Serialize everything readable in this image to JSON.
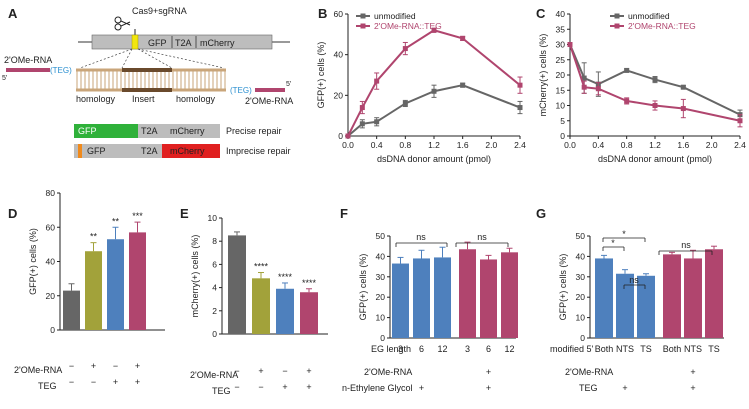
{
  "colors": {
    "gray": "#666666",
    "pink": "#b0456e",
    "olive": "#a2a23a",
    "blue": "#4e80bd",
    "green": "#2fb13a",
    "red": "#e02020",
    "orange": "#f08a1c",
    "yellow": "#f2e60d",
    "tan": "#d4b48a",
    "brown": "#6a4a2c",
    "cyan": "#2a8fd0",
    "axis": "#222222"
  },
  "panels": {
    "A": {
      "letter": "A",
      "scissors_icon": "scissors-icon",
      "cas9_label": "Cas9+sgRNA",
      "gfp_label": "GFP",
      "t2a_label": "T2A",
      "mcherry_label": "mCherry",
      "ome_left": "2'OMe-RNA",
      "teg_left": "(TEG)",
      "five_prime_left": "5'",
      "teg_right": "(TEG)",
      "five_prime_right": "5'",
      "homology_left": "homology",
      "insert": "Insert",
      "homology_right": "homology",
      "ome_right": "2'OMe-RNA",
      "precise_gfp": "GFP",
      "precise_t2a": "T2A",
      "precise_mcherry": "mCherry",
      "precise_label": "Precise repair",
      "imprecise_gfp": "GFP",
      "imprecise_t2a": "T2A",
      "imprecise_mcherry": "mCherry",
      "imprecise_label": "Imprecise repair"
    },
    "B": {
      "letter": "B"
    },
    "C": {
      "letter": "C"
    },
    "D": {
      "letter": "D",
      "row1": "2'OMe-RNA",
      "row2": "TEG"
    },
    "E": {
      "letter": "E",
      "row1": "2'OMe-RNA",
      "row2": "TEG"
    },
    "F": {
      "letter": "F",
      "row0": "EG length",
      "row1": "2'OMe-RNA",
      "row2": "n-Ethylene Glycol",
      "ns1": "ns",
      "ns2": "ns"
    },
    "G": {
      "letter": "G",
      "row0": "modified 5'",
      "row1": "2'OMe-RNA",
      "row2": "TEG",
      "star1": "*",
      "star2": "*",
      "ns_inner": "ns",
      "ns_right": "ns"
    }
  },
  "chart_data": [
    {
      "id": "B",
      "type": "line",
      "xlabel": "dsDNA donor amount (pmol)",
      "ylabel": "GFP(+) cells (%)",
      "xlim": [
        0,
        2.4
      ],
      "ylim": [
        0,
        60
      ],
      "xticks": [
        "0.0",
        "0.4",
        "0.8",
        "1.2",
        "1.6",
        "2.0",
        "2.4"
      ],
      "yticks": [
        "0",
        "20",
        "40",
        "60"
      ],
      "legend": "top-left",
      "series": [
        {
          "name": "unmodified",
          "color": "#666666",
          "x": [
            0,
            0.2,
            0.4,
            0.8,
            1.2,
            1.6,
            2.4
          ],
          "y": [
            0,
            6,
            7,
            16,
            22,
            25,
            14
          ],
          "err": [
            0.5,
            2,
            2,
            1.5,
            3,
            1,
            3
          ]
        },
        {
          "name": "2'OMe-RNA::TEG",
          "color": "#b0456e",
          "x": [
            0,
            0.2,
            0.4,
            0.8,
            1.2,
            1.6,
            2.4
          ],
          "y": [
            0,
            14,
            27,
            43,
            52,
            48,
            25
          ],
          "err": [
            0.5,
            3,
            4,
            3,
            1,
            1,
            4
          ]
        }
      ]
    },
    {
      "id": "C",
      "type": "line",
      "xlabel": "dsDNA donor amount (pmol)",
      "ylabel": "mCherry(+) cells (%)",
      "xlim": [
        0,
        2.4
      ],
      "ylim": [
        0,
        40
      ],
      "xticks": [
        "0.0",
        "0.4",
        "0.8",
        "1.2",
        "1.6",
        "2.0",
        "2.4"
      ],
      "yticks": [
        "0",
        "5",
        "10",
        "15",
        "20",
        "25",
        "30",
        "35",
        "40"
      ],
      "legend": "top-right",
      "series": [
        {
          "name": "unmodified",
          "color": "#666666",
          "x": [
            0,
            0.2,
            0.4,
            0.8,
            1.2,
            1.6,
            2.4
          ],
          "y": [
            30,
            19,
            17,
            21.5,
            18.5,
            16,
            7
          ],
          "err": [
            0.5,
            5,
            4,
            0.5,
            1,
            0.5,
            1.5
          ]
        },
        {
          "name": "2'OMe-RNA::TEG",
          "color": "#b0456e",
          "x": [
            0,
            0.2,
            0.4,
            0.8,
            1.2,
            1.6,
            2.4
          ],
          "y": [
            30,
            16,
            15.5,
            11.5,
            10,
            9,
            5
          ],
          "err": [
            0.5,
            2,
            2,
            1,
            1.5,
            3,
            2
          ]
        }
      ]
    },
    {
      "id": "D",
      "type": "bar",
      "ylabel": "GFP(+) cells (%)",
      "ylim": [
        0,
        80
      ],
      "yticks": [
        "0",
        "20",
        "40",
        "60",
        "80"
      ],
      "values": [
        23,
        46,
        53,
        57
      ],
      "err": [
        4,
        5,
        7,
        6
      ],
      "colors": [
        "#666666",
        "#a2a23a",
        "#4e80bd",
        "#b0456e"
      ],
      "sig": [
        "",
        "**",
        "**",
        "***"
      ],
      "row1": [
        "−",
        "+",
        "−",
        "+"
      ],
      "row2": [
        "−",
        "−",
        "+",
        "+"
      ]
    },
    {
      "id": "E",
      "type": "bar",
      "ylabel": "mCherry(+) cells (%)",
      "ylim": [
        0,
        10
      ],
      "yticks": [
        "0",
        "2",
        "4",
        "6",
        "8",
        "10"
      ],
      "values": [
        8.5,
        4.8,
        3.9,
        3.6
      ],
      "err": [
        0.3,
        0.5,
        0.5,
        0.3
      ],
      "colors": [
        "#666666",
        "#a2a23a",
        "#4e80bd",
        "#b0456e"
      ],
      "sig": [
        "",
        "****",
        "****",
        "****"
      ],
      "row1": [
        "−",
        "+",
        "−",
        "+"
      ],
      "row2": [
        "−",
        "−",
        "+",
        "+"
      ]
    },
    {
      "id": "F",
      "type": "bar",
      "ylabel": "GFP(+) cells (%)",
      "ylim": [
        0,
        50
      ],
      "yticks": [
        "0",
        "10",
        "20",
        "30",
        "40",
        "50"
      ],
      "values": [
        36.5,
        39,
        39.5,
        43.5,
        38.5,
        42
      ],
      "err": [
        3,
        4,
        5,
        3.5,
        2,
        2
      ],
      "colors": [
        "#4e80bd",
        "#4e80bd",
        "#4e80bd",
        "#b0456e",
        "#b0456e",
        "#b0456e"
      ],
      "row0": [
        "3",
        "6",
        "12",
        "3",
        "6",
        "12"
      ],
      "row1": [
        "",
        "",
        "",
        "",
        "+",
        ""
      ],
      "row2": [
        "",
        "+",
        "",
        "",
        "+",
        ""
      ]
    },
    {
      "id": "G",
      "type": "bar",
      "ylabel": "GFP(+) cells (%)",
      "ylim": [
        0,
        50
      ],
      "yticks": [
        "0",
        "10",
        "20",
        "30",
        "40",
        "50"
      ],
      "values": [
        39,
        31.5,
        30.5,
        41,
        39,
        43.5
      ],
      "err": [
        1.5,
        2,
        1,
        1,
        4,
        1.5
      ],
      "colors": [
        "#4e80bd",
        "#4e80bd",
        "#4e80bd",
        "#b0456e",
        "#b0456e",
        "#b0456e"
      ],
      "row0": [
        "Both",
        "NTS",
        "TS",
        "Both",
        "NTS",
        "TS"
      ],
      "row1": [
        "",
        "",
        "",
        "",
        "+",
        ""
      ],
      "row2": [
        "",
        "+",
        "",
        "",
        "+",
        ""
      ]
    }
  ]
}
